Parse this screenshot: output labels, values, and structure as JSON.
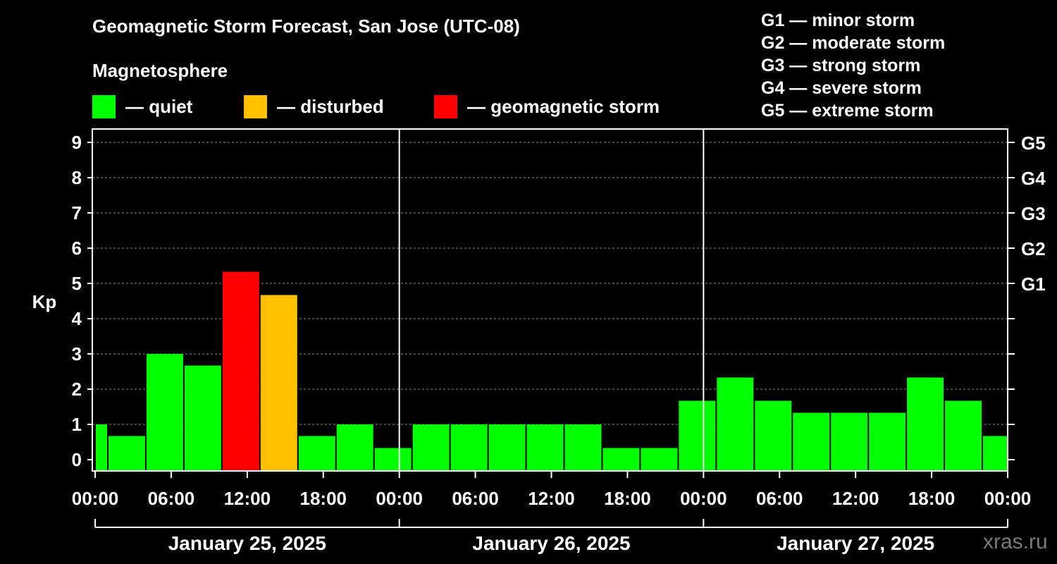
{
  "header": {
    "title": "Geomagnetic Storm Forecast, San Jose (UTC-08)",
    "subtitle": "Magnetosphere"
  },
  "legend": {
    "items": [
      {
        "label": "— quiet",
        "color": "#00ff00"
      },
      {
        "label": "— disturbed",
        "color": "#ffc000"
      },
      {
        "label": "— geomagnetic storm",
        "color": "#ff0000"
      }
    ]
  },
  "storm_scale": {
    "items": [
      "G1 — minor storm",
      "G2 — moderate storm",
      "G3 — strong storm",
      "G4 — severe storm",
      "G5 — extreme storm"
    ]
  },
  "watermark": "xras.ru",
  "chart_data": {
    "type": "bar",
    "title": "Geomagnetic Storm Forecast, San Jose (UTC-08)",
    "ylabel": "Kp",
    "ylim": [
      0,
      9
    ],
    "yticks": [
      "0",
      "1",
      "2",
      "3",
      "4",
      "5",
      "6",
      "7",
      "8",
      "9"
    ],
    "right_ticks": [
      {
        "kp": 5,
        "label": "G1"
      },
      {
        "kp": 6,
        "label": "G2"
      },
      {
        "kp": 7,
        "label": "G3"
      },
      {
        "kp": 8,
        "label": "G4"
      },
      {
        "kp": 9,
        "label": "G5"
      }
    ],
    "x_range_hours": [
      0,
      72
    ],
    "xticks": [
      "00:00",
      "06:00",
      "12:00",
      "18:00",
      "00:00",
      "06:00",
      "12:00",
      "18:00",
      "00:00",
      "06:00",
      "12:00",
      "18:00",
      "00:00"
    ],
    "days": [
      "January 25, 2025",
      "January 26, 2025",
      "January 27, 2025"
    ],
    "color_thresholds": {
      "quiet_below": 4,
      "storm_from": 5
    },
    "bars": [
      {
        "start": 0,
        "end": 1,
        "kp": 1.0
      },
      {
        "start": 1,
        "end": 4,
        "kp": 0.67
      },
      {
        "start": 4,
        "end": 7,
        "kp": 3.0
      },
      {
        "start": 7,
        "end": 10,
        "kp": 2.67
      },
      {
        "start": 10,
        "end": 13,
        "kp": 5.33
      },
      {
        "start": 13,
        "end": 16,
        "kp": 4.67
      },
      {
        "start": 16,
        "end": 19,
        "kp": 0.67
      },
      {
        "start": 19,
        "end": 22,
        "kp": 1.0
      },
      {
        "start": 22,
        "end": 25,
        "kp": 0.33
      },
      {
        "start": 25,
        "end": 28,
        "kp": 1.0
      },
      {
        "start": 28,
        "end": 31,
        "kp": 1.0
      },
      {
        "start": 31,
        "end": 34,
        "kp": 1.0
      },
      {
        "start": 34,
        "end": 37,
        "kp": 1.0
      },
      {
        "start": 37,
        "end": 40,
        "kp": 1.0
      },
      {
        "start": 40,
        "end": 43,
        "kp": 0.33
      },
      {
        "start": 43,
        "end": 46,
        "kp": 0.33
      },
      {
        "start": 46,
        "end": 49,
        "kp": 1.67
      },
      {
        "start": 49,
        "end": 52,
        "kp": 2.33
      },
      {
        "start": 52,
        "end": 55,
        "kp": 1.67
      },
      {
        "start": 55,
        "end": 58,
        "kp": 1.33
      },
      {
        "start": 58,
        "end": 61,
        "kp": 1.33
      },
      {
        "start": 61,
        "end": 64,
        "kp": 1.33
      },
      {
        "start": 64,
        "end": 67,
        "kp": 2.33
      },
      {
        "start": 67,
        "end": 70,
        "kp": 1.67
      },
      {
        "start": 70,
        "end": 72,
        "kp": 0.67
      }
    ]
  }
}
